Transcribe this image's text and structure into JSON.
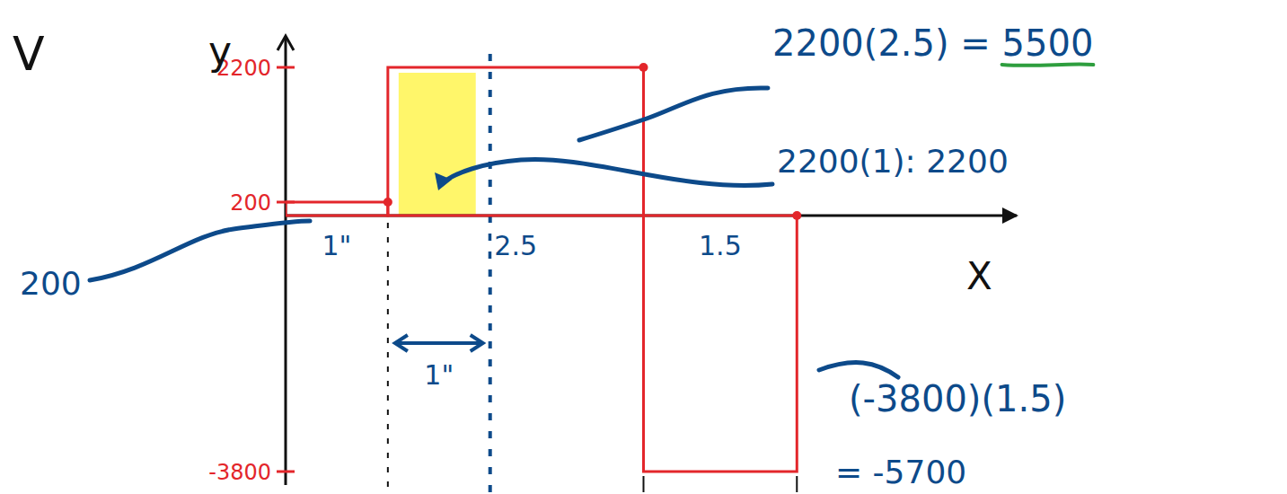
{
  "chart_data": {
    "type": "histogram",
    "title": "V",
    "x_label": "X",
    "y_label": "y",
    "bins": [
      0,
      1,
      3.5,
      5
    ],
    "values": [
      200,
      2200,
      -3800
    ],
    "bin_labels": [
      "1\"",
      "2.5",
      "1.5"
    ],
    "color": "#e3262b",
    "xlim": [
      0,
      7
    ],
    "ylim": [
      -4000,
      2400
    ],
    "yticks": [
      -3800,
      200,
      2200
    ],
    "tick_labels": "y",
    "grid": false,
    "annotations": [
      "2200(2.5) = 5500",
      "2200(1): 2200",
      "200",
      "(-3800)(1.5)",
      "= -5700",
      "1\""
    ]
  }
}
